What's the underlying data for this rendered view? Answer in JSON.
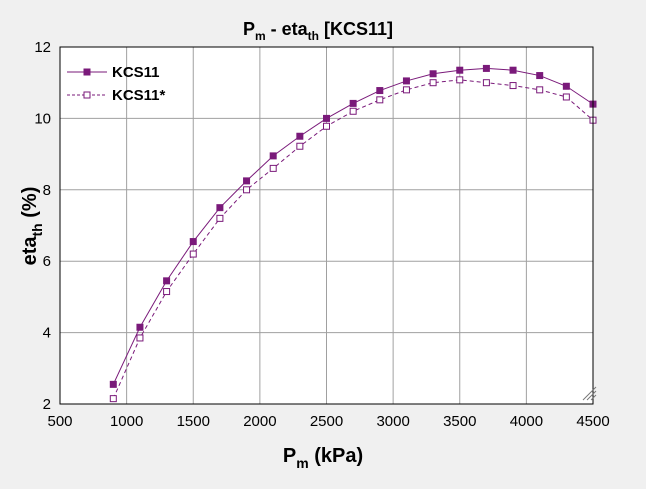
{
  "chart_data": {
    "type": "line",
    "title": {
      "main": "P",
      "main_sub": "m",
      "sep": " - eta",
      "sep_sub": "th",
      "tail": " [KCS11]"
    },
    "xlabel": {
      "main": "P",
      "sub": "m",
      "tail": " (kPa)"
    },
    "ylabel": {
      "main": "eta",
      "sub": "th",
      "tail": " (%)"
    },
    "xlim": [
      500,
      4500
    ],
    "ylim": [
      2,
      12
    ],
    "xticks": [
      500,
      1000,
      1500,
      2000,
      2500,
      3000,
      3500,
      4000,
      4500
    ],
    "yticks": [
      2,
      4,
      6,
      8,
      10,
      12
    ],
    "grid": true,
    "legend_position": "top-left",
    "series": [
      {
        "name": "KCS11",
        "line_style": "solid",
        "marker": "filled-square",
        "color": "#7a1a7a",
        "x": [
          900,
          1100,
          1300,
          1500,
          1700,
          1900,
          2100,
          2300,
          2500,
          2700,
          2900,
          3100,
          3300,
          3500,
          3700,
          3900,
          4100,
          4300,
          4500
        ],
        "y": [
          2.55,
          4.15,
          5.45,
          6.55,
          7.5,
          8.25,
          8.95,
          9.5,
          10.0,
          10.42,
          10.78,
          11.05,
          11.25,
          11.35,
          11.4,
          11.35,
          11.2,
          10.9,
          10.4
        ]
      },
      {
        "name": "KCS11*",
        "line_style": "dashed",
        "marker": "open-square",
        "color": "#7a1a7a",
        "x": [
          900,
          1100,
          1300,
          1500,
          1700,
          1900,
          2100,
          2300,
          2500,
          2700,
          2900,
          3100,
          3300,
          3500,
          3700,
          3900,
          4100,
          4300,
          4500
        ],
        "y": [
          2.15,
          3.85,
          5.15,
          6.2,
          7.2,
          8.0,
          8.6,
          9.22,
          9.78,
          10.2,
          10.52,
          10.8,
          11.0,
          11.08,
          11.0,
          10.92,
          10.8,
          10.6,
          9.95
        ]
      }
    ]
  }
}
